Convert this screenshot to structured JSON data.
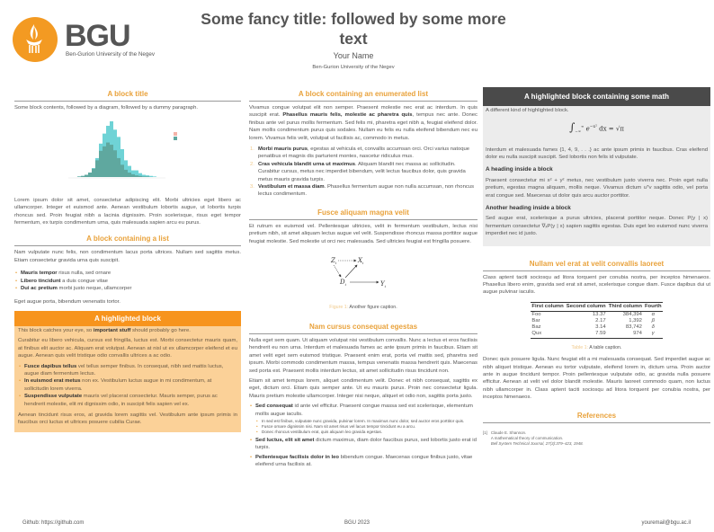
{
  "header": {
    "logo_text": "BGU",
    "logo_sub": "Ben-Gurion University of the Negev",
    "title": "Some fancy title: followed by some more text",
    "author": "Your Name",
    "affiliation": "Ben-Gurion University of the Negev"
  },
  "left": {
    "block1": {
      "title": "A block title",
      "intro": "Some block contents, followed by a diagram, followed by a dummy paragraph.",
      "para": "Lorem ipsum dolor sit amet, consectetur adipiscing elit. Morbi ultricies eget libero ac ullamcorper. Integer et euismod ante. Aenean vestibulum lobortis augue, ut lobortis turpis rhoncus sed. Proin feugiat nibh a lacinia dignissim. Proin scelerisque, risus eget tempor fermentum, ex turpis condimentum urna, quis malesuada sapien arcu eu purus."
    },
    "block2": {
      "title": "A block containing a list",
      "intro": "Nam vulputate nunc felis, non condimentum lacus porta ultrices. Nullam sed sagittis metus. Etiam consectetur gravida urna quis suscipit.",
      "items": [
        {
          "b": "Mauris tempor",
          "t": " risus nulla, sed ornare"
        },
        {
          "b": "Libero tincidunt",
          "t": " a duis congue vitae"
        },
        {
          "b": "Dui ac pretium",
          "t": " morbi justo neque, ullamcorper"
        }
      ],
      "outro": "Eget augue porta, bibendum venenatis tortor."
    },
    "alert": {
      "title": "A highlighted block",
      "p1_pre": "This block catches your eye, so ",
      "p1_b": "important stuff",
      "p1_post": " should probably go here.",
      "p2": "Curabitur eu libero vehicula, cursus est fringilla, luctus est. Morbi consectetur mauris quam, at finibus elit auctor ac. Aliquam erat volutpat. Aenean at nisl ut ex ullamcorper eleifend et eu augue. Aenean quis velit tristique odio convallis ultrices a ac odio.",
      "items": [
        {
          "b": "Fusce dapibus tellus",
          "t": " vel tellus semper finibus. In consequat, nibh sed mattis luctus, augue diam fermentum lectus."
        },
        {
          "b": "In euismod erat metus",
          "t": " non ex. Vestibulum luctus augue in mi condimentum, at sollicitudin lorem viverra."
        },
        {
          "b": "Suspendisse vulputate",
          "t": " mauris vel placerat consectetur. Mauris semper, purus ac hendrerit molestie, elit mi dignissim odio, in suscipit felis sapien vel ex."
        }
      ],
      "p3": "Aenean tincidunt risus eros, at gravida lorem sagittis vel. Vestibulum ante ipsum primis in faucibus orci luctus et ultrices posuere cubilia Curae."
    }
  },
  "middle": {
    "enum": {
      "title": "A block containing an enumerated list",
      "p_pre": "Vivamus congue volutpat elit non semper. Praesent molestie nec erat ac interdum. In quis suscipit erat. ",
      "p_b": "Phasellus mauris felis, molestie ac pharetra quis",
      "p_post": ", tempus nec ante. Donec finibus ante vel purus mollis fermentum. Sed felis mi, pharetra eget nibh a, feugiat eleifend dolor. Nam mollis condimentum purus quis sodales. Nullam eu felis eu nulla eleifend bibendum nec eu lorem. Vivamus felis velit, volutpat ut facilisis ac, commodo in metus.",
      "items": [
        {
          "n": "1.",
          "b": "Morbi mauris purus",
          "t": ", egestas at vehicula et, convallis accumsan orci. Orci varius natoque penatibus et magnis dis parturient montes, nascetur ridiculus mus."
        },
        {
          "n": "2.",
          "b": "Cras vehicula blandit urna ut maximus",
          "t": ". Aliquam blandit nec massa ac sollicitudin. Curabitur cursus, metus nec imperdiet bibendum, velit lectus faucibus dolor, quis gravida metus mauris gravida turpis."
        },
        {
          "n": "3.",
          "b": "Vestibulum et massa diam",
          "t": ". Phasellus fermentum augue non nulla accumsan, non rhoncus lectus condimentum."
        }
      ]
    },
    "fusce": {
      "title": "Fusce aliquam magna velit",
      "para": "Et rutrum ex euismod vel. Pellentesque ultricies, velit in fermentum vestibulum, lectus nisi pretium nibh, sit amet aliquam lectus augue vel velit. Suspendisse rhoncus massa porttitor augue feugiat molestie. Sed molestie ut orci nec malesuada. Sed ultricies feugiat est fringilla posuere.",
      "diagram": {
        "z": "Z",
        "x": "X",
        "d": "D",
        "y": "Y",
        "sub": "i"
      },
      "caption_label": "Figure 1:",
      "caption": " Another figure caption."
    },
    "nam": {
      "title": "Nam cursus consequat egestas",
      "p1": "Nulla eget sem quam. Ut aliquam volutpat nisi vestibulum convallis. Nunc a lectus et eros facilisis hendrerit eu non urna. Interdum et malesuada fames ac ante ipsum primis in faucibus. Etiam sit amet velit eget sem euismod tristique. Praesent enim erat, porta vel mattis sed, pharetra sed ipsum. Morbi commodo condimentum massa, tempus venenatis massa hendrerit quis. Maecenas sed porta est. Praesent mollis interdum lectus, sit amet sollicitudin risus tincidunt non.",
      "p2": "Etiam sit amet tempus lorem, aliquet condimentum velit. Donec et nibh consequat, sagittis ex eget, dictum orci. Etiam quis semper ante. Ut eu mauris purus. Proin nec consectetur ligula. Mauris pretium molestie ullamcorper. Integer nisi neque, aliquet et odio non, sagittis porta justo.",
      "items": [
        {
          "b": "Sed consequat",
          "t": " id ante vel efficitur. Praesent congue massa sed est scelerisque, elementum mollis augue iaculis.",
          "sub": [
            "In sed est finibus, vulputate nunc gravida, pulvinar lorem. In maximus nunc dolor, sed auctor eros porttitor quis.",
            "Fusce ornare dignissim nisi. Nam sit amet risus vel lacus tempor tincidunt eu a arcu.",
            "Donec rhoncus vestibulum erat, quis aliquam leo gravida egestas."
          ]
        },
        {
          "b": "Sed luctus, elit sit amet",
          "t": " dictum maximus, diam dolor faucibus purus, sed lobortis justo erat id turpis."
        },
        {
          "b": "Pellentesque facilisis dolor in leo",
          "t": " bibendum congue. Maecenas congue finibus justo, vitae eleifend urna facilisis at."
        }
      ]
    }
  },
  "right": {
    "math": {
      "title": "A highlighted block containing some math",
      "intro": "A different kind of highlighted block.",
      "eq_int": "∫",
      "eq_lo": "−∞",
      "eq_hi": "∞",
      "eq_body": "e",
      "eq_exp": "−x²",
      "eq_rest": " dx = √π",
      "p1": "Interdum et malesuada fames {1, 4, 9, . . .} ac ante ipsum primis in faucibus. Cras eleifend dolor eu nulla suscipit suscipit. Sed lobortis non felis id vulputate.",
      "h1": "A heading inside a block",
      "p2": "Praesent consectetur mi x² + y² metus, nec vestibulum justo viverra nec. Proin eget nulla pretium, egestas magna aliquam, mollis neque. Vivamus dictum uᵀv sagittis odio, vel porta erat congue sed. Maecenas ut dolor quis arcu auctor porttitor.",
      "h2": "Another heading inside a block",
      "p3": "Sed augue erat, scelerisque a purus ultricies, placerat porttitor neque. Donec P(y | x) fermentum consectetur ∇ₓP(y | x) sapien sagittis egestas. Duis eget leo euismod nunc viverra imperdiet nec id justo."
    },
    "nullam": {
      "title": "Nullam vel erat at velit convallis laoreet",
      "p1": "Class aptent taciti sociosqu ad litora torquent per conubia nostra, per inceptos himenaeos. Phasellus libero enim, gravida sed erat sit amet, scelerisque congue diam. Fusce dapibus dui ut augue pulvinar iaculis.",
      "table": {
        "headers": [
          "First column",
          "Second column",
          "Third column",
          "Fourth"
        ],
        "rows": [
          [
            "Foo",
            "13.37",
            "384,394",
            "α"
          ],
          [
            "Bar",
            "2.17",
            "1,392",
            "β"
          ],
          [
            "Baz",
            "3.14",
            "83,742",
            "δ"
          ],
          [
            "Qux",
            "7.59",
            "974",
            "γ"
          ]
        ]
      },
      "caption_label": "Table 1:",
      "caption": " A table caption.",
      "p2": "Donec quis posuere ligula. Nunc feugiat elit a mi malesuada consequat. Sed imperdiet augue ac nibh aliquet tristique. Aenean eu tortor vulputate, eleifend lorem in, dictum urna. Proin auctor ante in augue tincidunt tempor. Proin pellentesque vulputate odio, ac gravida nulla posuere efficitur. Aenean at velit vel dolor blandit molestie. Mauris laoreet commodo quam, non luctus nibh ullamcorper in. Class aptent taciti sociosqu ad litora torquent per conubia nostra, per inceptos himenaeos."
    },
    "refs": {
      "title": "References",
      "entries": [
        {
          "label": "[1]",
          "author": "Claude E. Shannon.",
          "title": "A mathematical theory of communication.",
          "venue": "Bell System Technical Journal, 27(3):379–423, 1948."
        }
      ]
    }
  },
  "footer": {
    "left": "Github: https://github.com",
    "center": "BGU 2023",
    "right": "youremail@bgu.ac.il"
  },
  "colors": {
    "accent": "#e9a23b",
    "alert": "#f7941d",
    "alert_body": "#fbd198",
    "math_header": "#4a4a4a",
    "math_body": "#ececec"
  },
  "chart_data": {
    "type": "bar",
    "subtype": "overlapping histogram",
    "series": [
      {
        "color": "#6fd3d6",
        "values": [
          0.01,
          0.02,
          0.04,
          0.08,
          0.16,
          0.34,
          0.6,
          0.78,
          0.92,
          1.0,
          0.85,
          0.72,
          0.5,
          0.3,
          0.2,
          0.12,
          0.12,
          0.07,
          0.04,
          0.03,
          0.02,
          0.01
        ]
      },
      {
        "color": "#5fa89f",
        "values": [
          0.01,
          0.02,
          0.04,
          0.08,
          0.15,
          0.3,
          0.47,
          0.55,
          0.62,
          0.58,
          0.48,
          0.34,
          0.22,
          0.13,
          0.08,
          0.05,
          0.03,
          0.02,
          0.01,
          0.01,
          0,
          0
        ]
      }
    ],
    "grid": false,
    "legend": "right"
  }
}
